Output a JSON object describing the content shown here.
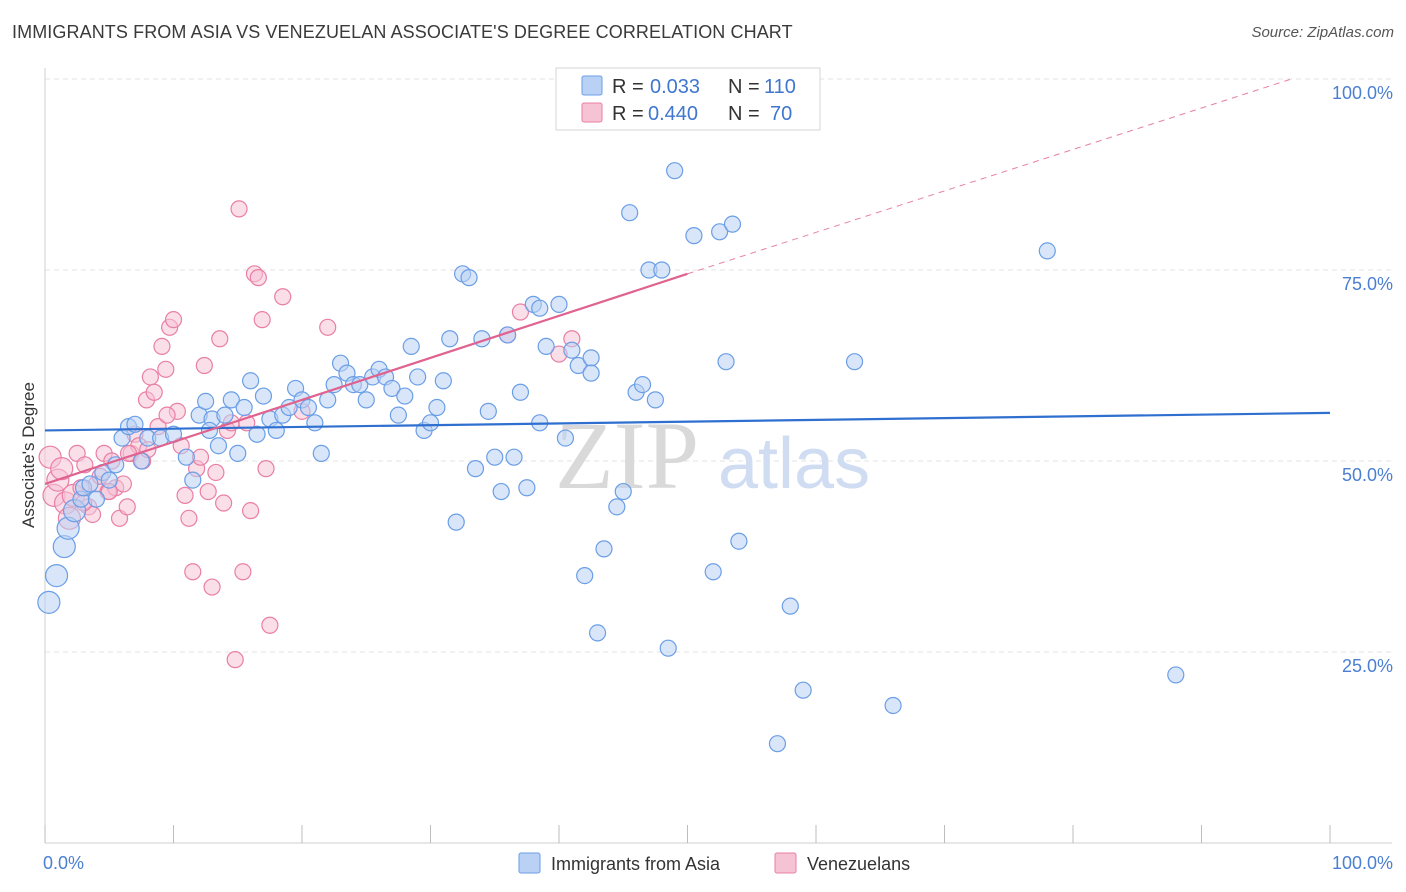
{
  "title": "IMMIGRANTS FROM ASIA VS VENEZUELAN ASSOCIATE'S DEGREE CORRELATION CHART",
  "source": "Source: ZipAtlas.com",
  "watermark": {
    "zip": "ZIP",
    "atlas": "atlas"
  },
  "colors": {
    "asia": "#6a9ee6",
    "asia_fill": "#b9d1f4",
    "venez": "#e97fa5",
    "venez_fill": "#f6c3d5",
    "asia_line": "#2f6fcf",
    "venez_line": "#e0628f",
    "grid": "#e3e3e3",
    "axis_text": "#4a7fd1"
  },
  "legend": {
    "rows": [
      {
        "r_label": "R =",
        "r_value": "0.033",
        "n_label": "N =",
        "n_value": "110"
      },
      {
        "r_label": "R =",
        "r_value": "0.440",
        "n_label": "N =",
        "n_value": "70"
      }
    ]
  },
  "chart_data": {
    "type": "scatter",
    "ylabel": "Associate's Degree",
    "x_tick_labels": [
      "0.0%",
      "100.0%"
    ],
    "y_tick_labels": [
      "25.0%",
      "50.0%",
      "75.0%",
      "100.0%"
    ],
    "xlim": [
      0,
      100
    ],
    "ylim": [
      0,
      100
    ],
    "grid": true,
    "legend_position": "top-center",
    "series": [
      {
        "name": "Immigrants from Asia",
        "trend": {
          "x": [
            0,
            100
          ],
          "y": [
            54.0,
            56.3
          ]
        },
        "points": [
          [
            0.3,
            31.5
          ],
          [
            0.9,
            35.0
          ],
          [
            1.5,
            38.8
          ],
          [
            1.8,
            41.2
          ],
          [
            2.3,
            43.5
          ],
          [
            2.8,
            45.0
          ],
          [
            3.0,
            46.5
          ],
          [
            3.5,
            47.0
          ],
          [
            4.0,
            45.0
          ],
          [
            4.5,
            48.5
          ],
          [
            5.0,
            47.5
          ],
          [
            5.5,
            49.5
          ],
          [
            6.0,
            53.0
          ],
          [
            6.5,
            54.5
          ],
          [
            7.0,
            54.8
          ],
          [
            7.5,
            50.0
          ],
          [
            8.0,
            53.0
          ],
          [
            9.0,
            53.0
          ],
          [
            10.0,
            53.5
          ],
          [
            11.0,
            50.5
          ],
          [
            11.5,
            47.5
          ],
          [
            12.0,
            56.0
          ],
          [
            12.5,
            57.8
          ],
          [
            13.0,
            55.5
          ],
          [
            13.5,
            52.0
          ],
          [
            14.0,
            56.0
          ],
          [
            14.5,
            58.0
          ],
          [
            15.0,
            51.0
          ],
          [
            15.5,
            57.0
          ],
          [
            16.0,
            60.5
          ],
          [
            16.5,
            53.5
          ],
          [
            17.0,
            58.5
          ],
          [
            17.5,
            55.5
          ],
          [
            18.0,
            54.0
          ],
          [
            18.5,
            56.0
          ],
          [
            19.0,
            57.0
          ],
          [
            19.5,
            59.5
          ],
          [
            20.0,
            58.0
          ],
          [
            20.5,
            57.0
          ],
          [
            21.0,
            55.0
          ],
          [
            21.5,
            51.0
          ],
          [
            22.0,
            58.0
          ],
          [
            22.5,
            60.0
          ],
          [
            23.0,
            62.8
          ],
          [
            23.5,
            61.5
          ],
          [
            24.0,
            60.0
          ],
          [
            24.5,
            60.0
          ],
          [
            25.0,
            58.0
          ],
          [
            25.5,
            61.0
          ],
          [
            26.0,
            62.0
          ],
          [
            26.5,
            61.0
          ],
          [
            27.0,
            59.5
          ],
          [
            27.5,
            56.0
          ],
          [
            28.0,
            58.5
          ],
          [
            28.5,
            65.0
          ],
          [
            29.0,
            61.0
          ],
          [
            29.5,
            54.0
          ],
          [
            30.0,
            55.0
          ],
          [
            30.5,
            57.0
          ],
          [
            31.0,
            60.5
          ],
          [
            31.5,
            66.0
          ],
          [
            32.0,
            42.0
          ],
          [
            32.5,
            74.5
          ],
          [
            33.0,
            74.0
          ],
          [
            33.5,
            49.0
          ],
          [
            34.0,
            66.0
          ],
          [
            34.5,
            56.5
          ],
          [
            35.0,
            50.5
          ],
          [
            35.5,
            46.0
          ],
          [
            36.0,
            66.5
          ],
          [
            36.5,
            50.5
          ],
          [
            37.0,
            59.0
          ],
          [
            37.5,
            46.5
          ],
          [
            38.0,
            70.5
          ],
          [
            38.5,
            70.0
          ],
          [
            38.5,
            55.0
          ],
          [
            39.0,
            65.0
          ],
          [
            40.0,
            70.5
          ],
          [
            40.5,
            53.0
          ],
          [
            41.0,
            64.5
          ],
          [
            41.5,
            62.5
          ],
          [
            42.0,
            35.0
          ],
          [
            42.5,
            63.5
          ],
          [
            42.5,
            61.5
          ],
          [
            43.0,
            27.5
          ],
          [
            43.5,
            38.5
          ],
          [
            44.5,
            44.0
          ],
          [
            45.0,
            46.0
          ],
          [
            45.5,
            82.5
          ],
          [
            46.0,
            59.0
          ],
          [
            46.5,
            60.0
          ],
          [
            47.0,
            75.0
          ],
          [
            47.5,
            58.0
          ],
          [
            48.0,
            75.0
          ],
          [
            48.5,
            25.5
          ],
          [
            49.0,
            88.0
          ],
          [
            50.5,
            79.5
          ],
          [
            52.0,
            35.5
          ],
          [
            52.5,
            80.0
          ],
          [
            53.0,
            63.0
          ],
          [
            53.5,
            81.0
          ],
          [
            54.0,
            39.5
          ],
          [
            58.0,
            31.0
          ],
          [
            59.0,
            20.0
          ],
          [
            63.0,
            63.0
          ],
          [
            66.0,
            18.0
          ],
          [
            78.0,
            77.5
          ],
          [
            88.0,
            22.0
          ],
          [
            57.0,
            13.0
          ],
          [
            12.8,
            54.0
          ]
        ]
      },
      {
        "name": "Venezuelans",
        "trend": {
          "x": [
            0,
            50
          ],
          "y": [
            47.0,
            74.5
          ],
          "dash_x": [
            50,
            97
          ],
          "dash_y": [
            74.5,
            100
          ]
        },
        "points": [
          [
            0.4,
            50.5
          ],
          [
            0.7,
            45.5
          ],
          [
            1.0,
            47.5
          ],
          [
            1.3,
            49.0
          ],
          [
            1.6,
            44.5
          ],
          [
            1.9,
            42.5
          ],
          [
            2.2,
            45.5
          ],
          [
            2.5,
            51.0
          ],
          [
            2.8,
            46.5
          ],
          [
            3.1,
            49.5
          ],
          [
            3.4,
            44.0
          ],
          [
            3.7,
            43.0
          ],
          [
            4.0,
            47.0
          ],
          [
            4.3,
            48.0
          ],
          [
            4.6,
            51.0
          ],
          [
            4.9,
            46.0
          ],
          [
            5.2,
            50.0
          ],
          [
            5.5,
            46.5
          ],
          [
            5.8,
            42.5
          ],
          [
            6.1,
            47.0
          ],
          [
            6.4,
            44.0
          ],
          [
            6.7,
            51.0
          ],
          [
            7.0,
            53.5
          ],
          [
            7.3,
            52.0
          ],
          [
            7.6,
            50.0
          ],
          [
            7.9,
            58.0
          ],
          [
            8.2,
            61.0
          ],
          [
            8.5,
            59.0
          ],
          [
            8.8,
            54.5
          ],
          [
            9.1,
            65.0
          ],
          [
            9.4,
            62.0
          ],
          [
            9.7,
            67.5
          ],
          [
            10.0,
            68.5
          ],
          [
            10.3,
            56.5
          ],
          [
            10.6,
            52.0
          ],
          [
            10.9,
            45.5
          ],
          [
            11.2,
            42.5
          ],
          [
            11.5,
            35.5
          ],
          [
            11.8,
            49.0
          ],
          [
            12.1,
            50.5
          ],
          [
            12.4,
            62.5
          ],
          [
            12.7,
            46.0
          ],
          [
            13.0,
            33.5
          ],
          [
            13.3,
            48.5
          ],
          [
            13.6,
            66.0
          ],
          [
            13.9,
            44.5
          ],
          [
            14.2,
            54.0
          ],
          [
            14.5,
            55.0
          ],
          [
            14.8,
            24.0
          ],
          [
            15.1,
            83.0
          ],
          [
            15.4,
            35.5
          ],
          [
            15.7,
            55.0
          ],
          [
            16.0,
            43.5
          ],
          [
            16.3,
            74.5
          ],
          [
            16.6,
            74.0
          ],
          [
            16.9,
            68.5
          ],
          [
            17.2,
            49.0
          ],
          [
            17.5,
            28.5
          ],
          [
            18.5,
            71.5
          ],
          [
            20.0,
            56.5
          ],
          [
            22.0,
            67.5
          ],
          [
            36.0,
            66.5
          ],
          [
            37.0,
            69.5
          ],
          [
            40.0,
            64.0
          ],
          [
            41.0,
            66.0
          ],
          [
            5.0,
            46.0
          ],
          [
            3.0,
            44.5
          ],
          [
            6.5,
            51.0
          ],
          [
            8.0,
            51.5
          ],
          [
            9.5,
            56.0
          ]
        ]
      }
    ]
  }
}
